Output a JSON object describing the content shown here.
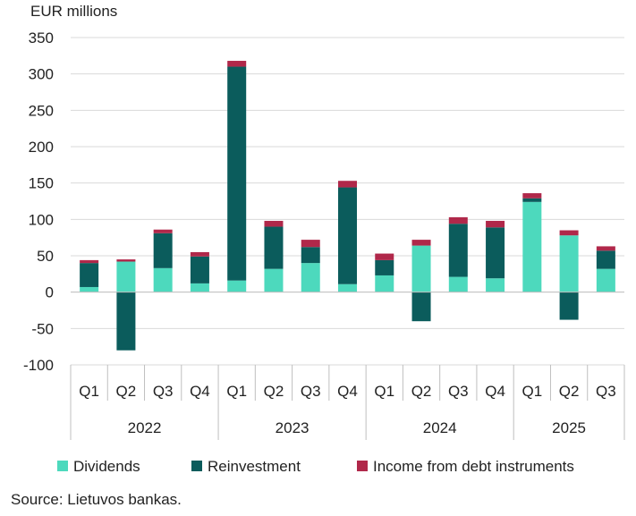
{
  "chart_data": {
    "type": "bar",
    "stacked": true,
    "unit_label": "EUR millions",
    "categories": [
      "Q1",
      "Q2",
      "Q3",
      "Q4",
      "Q1",
      "Q2",
      "Q3",
      "Q4",
      "Q1",
      "Q2",
      "Q3",
      "Q4",
      "Q1",
      "Q2",
      "Q3"
    ],
    "year_groups": [
      {
        "label": "2022",
        "count": 4
      },
      {
        "label": "2023",
        "count": 4
      },
      {
        "label": "2024",
        "count": 4
      },
      {
        "label": "2025",
        "count": 3
      }
    ],
    "series": [
      {
        "name": "Dividends",
        "color": "#4dd9bd",
        "values": [
          7,
          42,
          33,
          12,
          16,
          32,
          40,
          11,
          23,
          64,
          21,
          19,
          124,
          78,
          32
        ]
      },
      {
        "name": "Reinvestment",
        "color": "#0b5c5c",
        "values": [
          33,
          -80,
          48,
          37,
          294,
          58,
          22,
          133,
          21,
          -40,
          73,
          70,
          5,
          -38,
          25
        ]
      },
      {
        "name": "Income from debt instruments",
        "color": "#b0284a",
        "values": [
          4,
          3,
          5,
          6,
          8,
          8,
          10,
          9,
          9,
          8,
          9,
          9,
          7,
          7,
          6
        ]
      }
    ],
    "ylim": [
      -100,
      350
    ],
    "yticks": [
      -100,
      -50,
      0,
      50,
      100,
      150,
      200,
      250,
      300,
      350
    ],
    "grid": true,
    "legend_position": "bottom"
  },
  "footer": {
    "source": "Source: Lietuvos bankas."
  }
}
